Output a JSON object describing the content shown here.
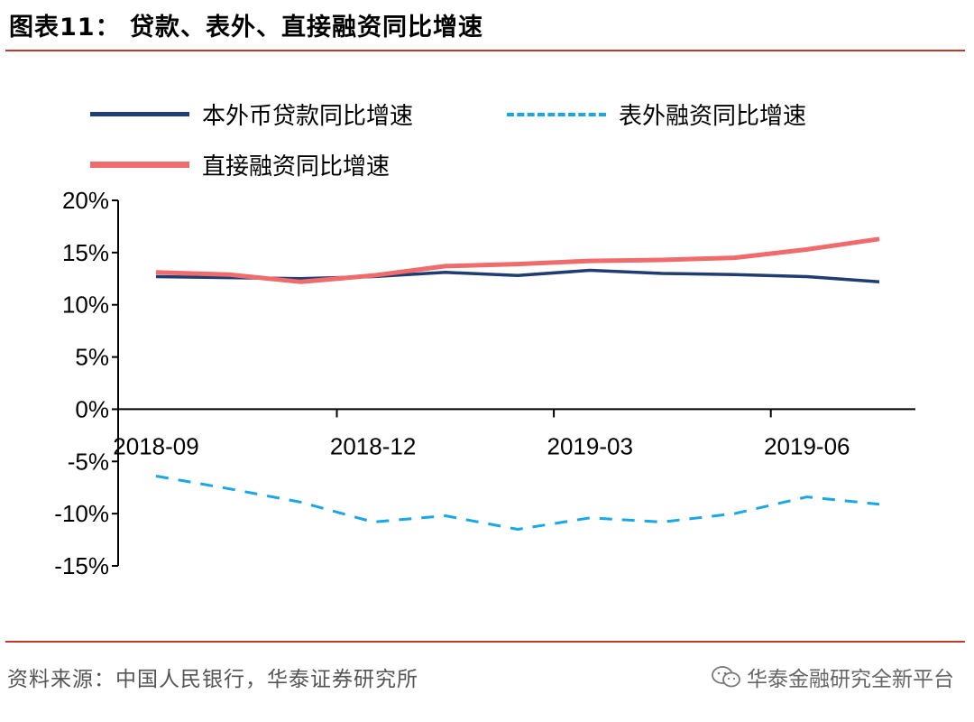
{
  "header": {
    "title": "图表11：  贷款、表外、直接融资同比增速"
  },
  "footer": {
    "source": "资料来源：中国人民银行，华泰证券研究所",
    "watermark": "华泰金融研究全新平台",
    "watermark_icon": "wechat-icon"
  },
  "colors": {
    "rule": "#c0392b",
    "loan": "#1f3c73",
    "offbalance": "#1aa7e6",
    "direct": "#f06b6b"
  },
  "chart_data": {
    "type": "line",
    "title": "",
    "xlabel": "",
    "ylabel": "",
    "x": [
      "2018-09",
      "2018-10",
      "2018-11",
      "2018-12",
      "2019-01",
      "2019-02",
      "2019-03",
      "2019-04",
      "2019-05",
      "2019-06",
      "2019-07"
    ],
    "x_tick_labels": [
      "2018-09",
      "2018-12",
      "2019-03",
      "2019-06"
    ],
    "y_tick_labels": [
      "20%",
      "15%",
      "10%",
      "5%",
      "0%",
      "-5%",
      "-10%",
      "-15%"
    ],
    "ylim": [
      -15,
      20
    ],
    "y_unit": "%",
    "grid": false,
    "legend_position": "top-left",
    "series": [
      {
        "name": "本外币贷款同比增速",
        "key": "loan",
        "style": "solid",
        "values": [
          12.7,
          12.6,
          12.5,
          12.7,
          13.1,
          12.8,
          13.3,
          13.0,
          12.9,
          12.7,
          12.2
        ]
      },
      {
        "name": "表外融资同比增速",
        "key": "offbalance",
        "style": "dashed",
        "values": [
          -6.4,
          -7.6,
          -8.9,
          -10.8,
          -10.2,
          -11.5,
          -10.4,
          -10.8,
          -10.0,
          -8.4,
          -9.1
        ]
      },
      {
        "name": "直接融资同比增速",
        "key": "direct",
        "style": "solid",
        "values": [
          13.1,
          12.9,
          12.2,
          12.8,
          13.7,
          13.9,
          14.2,
          14.3,
          14.5,
          15.3,
          16.3
        ]
      }
    ]
  }
}
